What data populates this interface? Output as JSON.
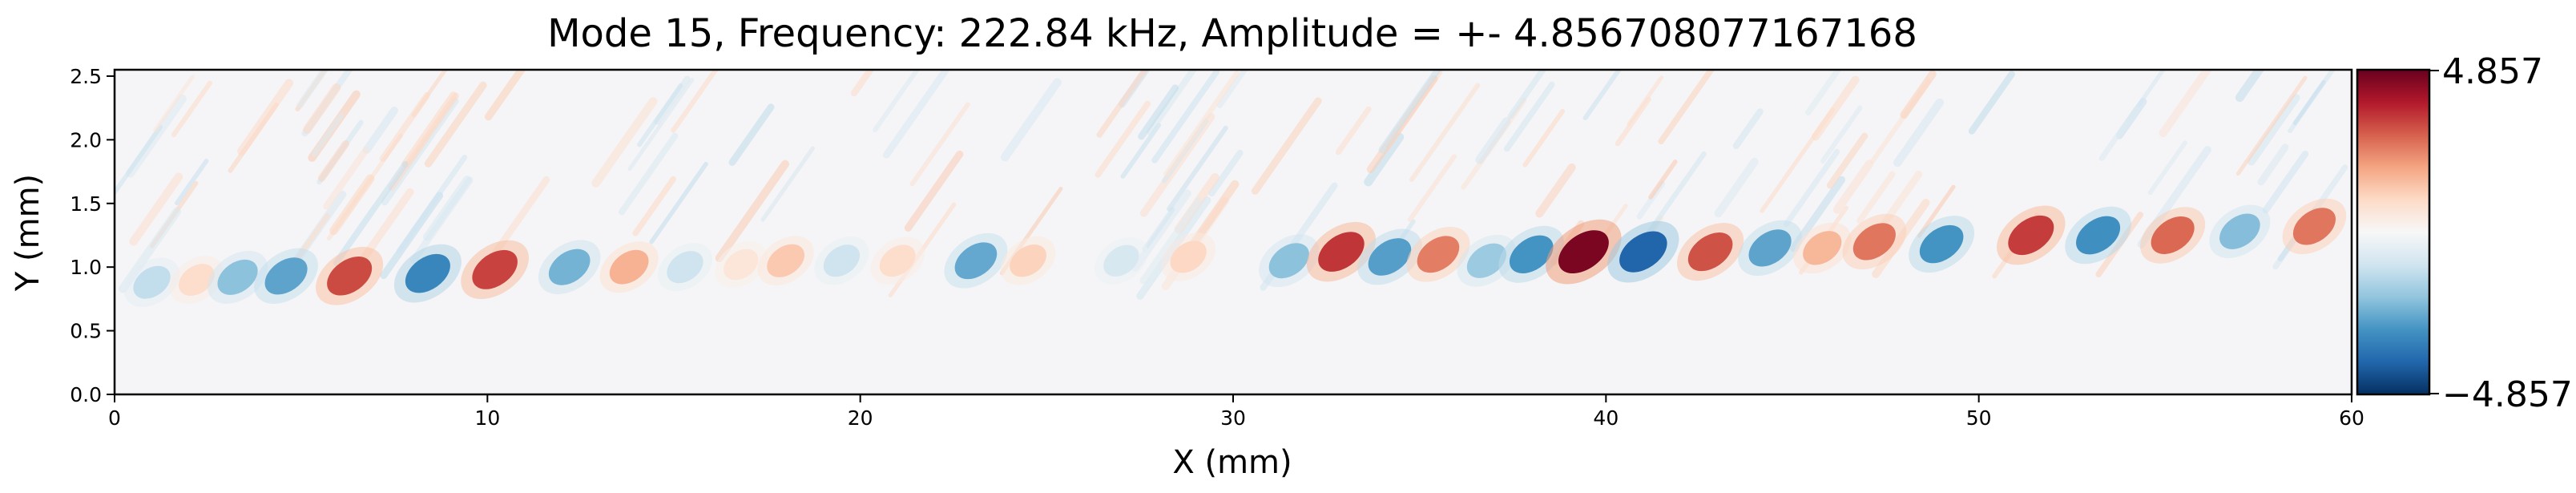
{
  "chart_data": {
    "type": "heatmap",
    "title": "Mode 15, Frequency: 222.84 kHz, Amplitude = +- 4.856708077167168",
    "xlabel": "X (mm)",
    "ylabel": "Y (mm)",
    "xlim": [
      0,
      60
    ],
    "ylim": [
      0,
      2.55
    ],
    "xticks": [
      "0",
      "10",
      "20",
      "30",
      "40",
      "50",
      "60"
    ],
    "xtick_values": [
      0,
      10,
      20,
      30,
      40,
      50,
      60
    ],
    "yticks": [
      "0.0",
      "0.5",
      "1.0",
      "1.5",
      "2.0",
      "2.5"
    ],
    "ytick_values": [
      0.0,
      0.5,
      1.0,
      1.5,
      2.0,
      2.5
    ],
    "colormap": "RdBu_r",
    "vmin": -4.857,
    "vmax": 4.857,
    "colorbar_ticks": [
      "4.857",
      "−4.857"
    ],
    "band_center_y": 1.0,
    "blobs": [
      {
        "x": 1.0,
        "y": 0.88,
        "value": -1.2
      },
      {
        "x": 2.2,
        "y": 0.9,
        "value": 0.9
      },
      {
        "x": 3.3,
        "y": 0.92,
        "value": -2.0
      },
      {
        "x": 4.6,
        "y": 0.93,
        "value": -2.6
      },
      {
        "x": 6.3,
        "y": 0.93,
        "value": 3.2
      },
      {
        "x": 8.4,
        "y": 0.95,
        "value": -3.2
      },
      {
        "x": 10.2,
        "y": 0.98,
        "value": 3.3
      },
      {
        "x": 12.2,
        "y": 1.0,
        "value": -2.3
      },
      {
        "x": 13.8,
        "y": 1.0,
        "value": 1.7
      },
      {
        "x": 15.3,
        "y": 1.0,
        "value": -1.0
      },
      {
        "x": 16.8,
        "y": 1.02,
        "value": 0.6
      },
      {
        "x": 18.0,
        "y": 1.05,
        "value": 1.3
      },
      {
        "x": 19.5,
        "y": 1.05,
        "value": -1.0
      },
      {
        "x": 21.0,
        "y": 1.05,
        "value": 0.9
      },
      {
        "x": 23.1,
        "y": 1.05,
        "value": -2.5
      },
      {
        "x": 24.5,
        "y": 1.05,
        "value": 1.1
      },
      {
        "x": 27.0,
        "y": 1.05,
        "value": -0.8
      },
      {
        "x": 28.8,
        "y": 1.08,
        "value": 1.0
      },
      {
        "x": 31.5,
        "y": 1.05,
        "value": -2.0
      },
      {
        "x": 32.9,
        "y": 1.12,
        "value": 3.5
      },
      {
        "x": 34.2,
        "y": 1.08,
        "value": -2.7
      },
      {
        "x": 35.5,
        "y": 1.1,
        "value": 2.5
      },
      {
        "x": 36.8,
        "y": 1.05,
        "value": -1.8
      },
      {
        "x": 38.0,
        "y": 1.1,
        "value": -2.9
      },
      {
        "x": 39.4,
        "y": 1.12,
        "value": 4.6
      },
      {
        "x": 41.0,
        "y": 1.12,
        "value": -3.9
      },
      {
        "x": 42.8,
        "y": 1.12,
        "value": 3.1
      },
      {
        "x": 44.4,
        "y": 1.15,
        "value": -2.6
      },
      {
        "x": 45.8,
        "y": 1.15,
        "value": 1.6
      },
      {
        "x": 47.2,
        "y": 1.2,
        "value": 2.6
      },
      {
        "x": 49.0,
        "y": 1.18,
        "value": -2.9
      },
      {
        "x": 51.4,
        "y": 1.25,
        "value": 3.4
      },
      {
        "x": 53.2,
        "y": 1.25,
        "value": -3.0
      },
      {
        "x": 55.2,
        "y": 1.25,
        "value": 2.8
      },
      {
        "x": 57.0,
        "y": 1.28,
        "value": -2.1
      },
      {
        "x": 59.0,
        "y": 1.32,
        "value": 2.6
      }
    ]
  }
}
